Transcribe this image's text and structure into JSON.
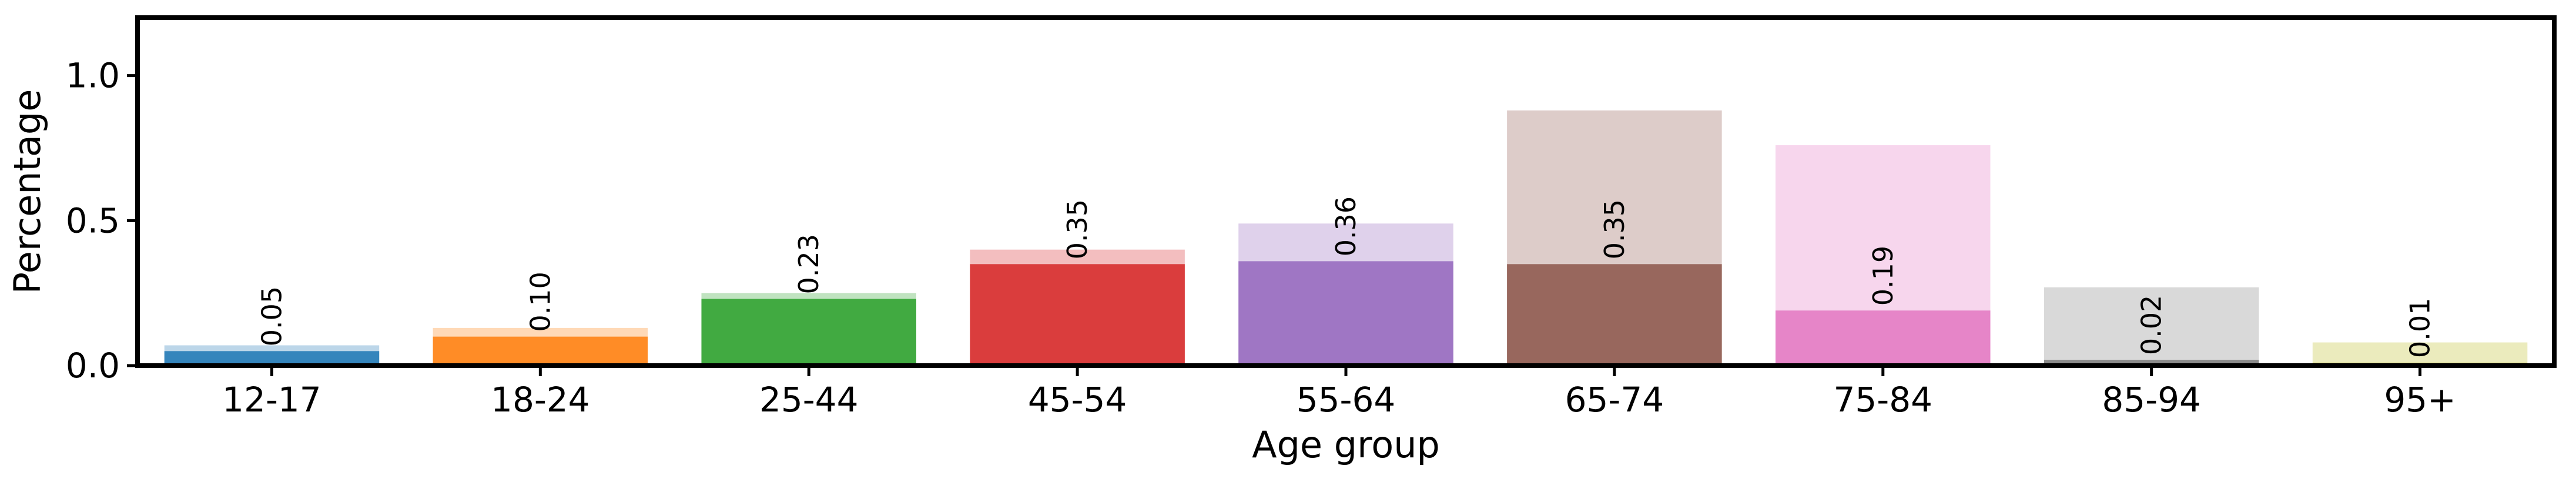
{
  "chart_data": {
    "type": "bar",
    "xlabel": "Age group",
    "ylabel": "Percentage",
    "ylim": [
      0,
      1.2
    ],
    "yticks": [
      "0.0",
      "0.5",
      "1.0"
    ],
    "categories": [
      "12-17",
      "18-24",
      "25-44",
      "45-54",
      "55-64",
      "65-74",
      "75-84",
      "85-94",
      "95+"
    ],
    "series": [
      {
        "values": [
          0.07,
          0.13,
          0.25,
          0.4,
          0.49,
          0.88,
          0.76,
          0.27,
          0.08
        ],
        "style": "light",
        "labels_shown": false
      },
      {
        "values": [
          0.05,
          0.1,
          0.23,
          0.35,
          0.36,
          0.35,
          0.19,
          0.02,
          0.01
        ],
        "style": "dark",
        "labels_shown": true
      }
    ],
    "bar_labels": [
      "0.05",
      "0.10",
      "0.23",
      "0.35",
      "0.36",
      "0.35",
      "0.19",
      "0.02",
      "0.01"
    ],
    "colors": [
      "#1f77b4",
      "#ff7f0e",
      "#2ca02c",
      "#d62728",
      "#9467bd",
      "#8c564b",
      "#e377c2",
      "#7f7f7f",
      "#bcbd22"
    ],
    "grid": false,
    "legend": "none"
  }
}
